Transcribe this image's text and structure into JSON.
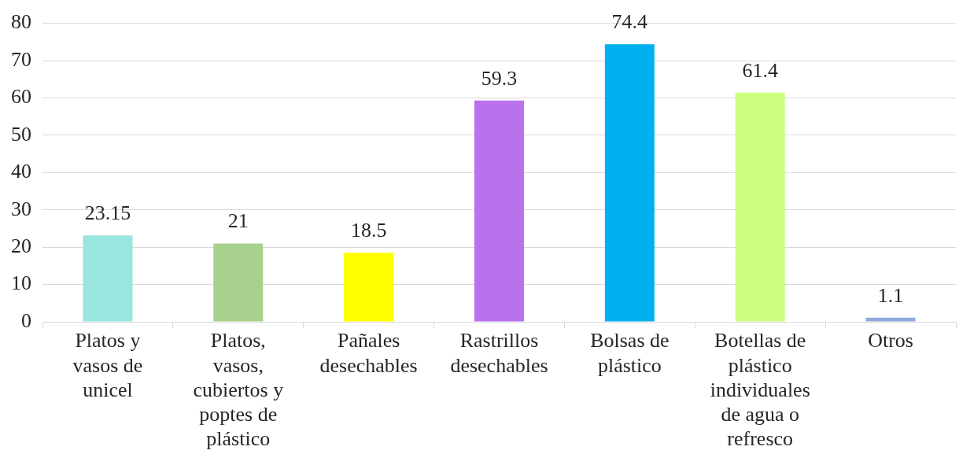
{
  "chart_data": {
    "type": "bar",
    "categories": [
      "Platos y vasos de unicel",
      "Platos, vasos, cubiertos y poptes de plástico",
      "Pañales desechables",
      "Rastrillos desechables",
      "Bolsas de plástico",
      "Botellas de plástico individuales de agua o refresco",
      "Otros"
    ],
    "values": [
      23.15,
      21,
      18.5,
      59.3,
      74.4,
      61.4,
      1.1
    ],
    "colors": [
      "#99e6e0",
      "#a9d18e",
      "#ffff00",
      "#b972ec",
      "#00b0f0",
      "#ccff80",
      "#8faadc"
    ],
    "ylim": [
      0,
      80
    ],
    "yticks": [
      0,
      10,
      20,
      30,
      40,
      50,
      60,
      70,
      80
    ],
    "grid": "y",
    "legend": false,
    "data_labels": true
  }
}
